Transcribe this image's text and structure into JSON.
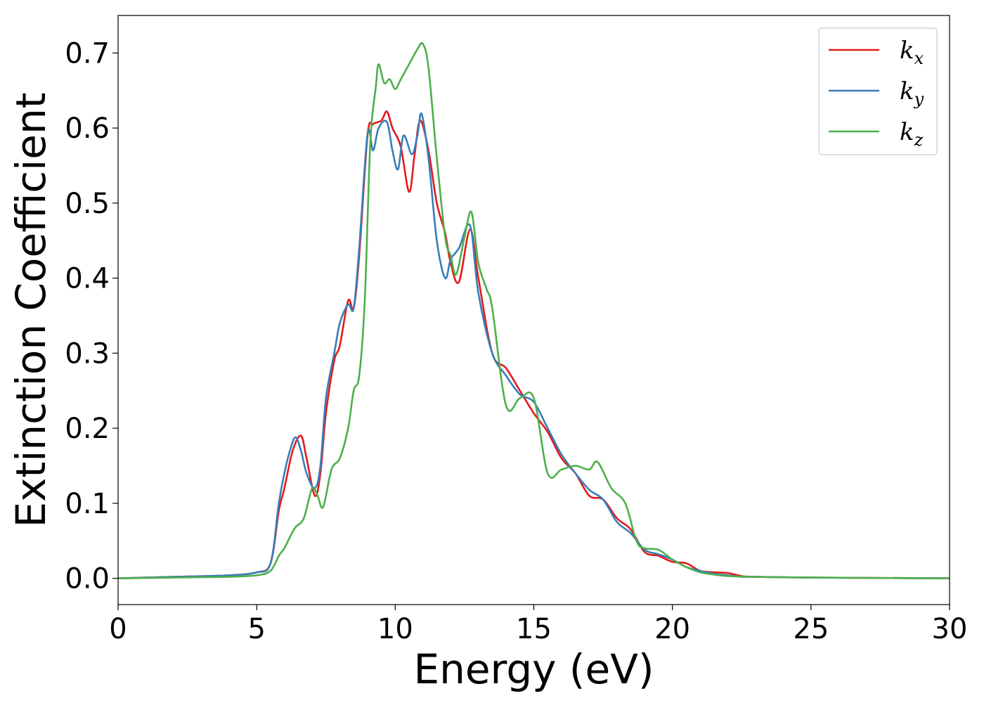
{
  "chart_data": {
    "type": "line",
    "title": "",
    "xlabel": "Energy (eV)",
    "ylabel": "Extinction Coefficient",
    "xlim": [
      0,
      30
    ],
    "ylim": [
      -0.035,
      0.75
    ],
    "xticks": [
      0,
      5,
      10,
      15,
      20,
      25,
      30
    ],
    "yticks": [
      0.0,
      0.1,
      0.2,
      0.3,
      0.4,
      0.5,
      0.6,
      0.7
    ],
    "grid": false,
    "legend_position": "top-right",
    "series": [
      {
        "name": "x",
        "legend_base": "k",
        "legend_sub": "x",
        "color": "#e41a1c",
        "x": [
          0,
          2,
          4,
          5,
          5.5,
          5.8,
          6.0,
          6.3,
          6.6,
          6.8,
          7.1,
          7.3,
          7.5,
          7.8,
          8.0,
          8.3,
          8.5,
          8.7,
          9.0,
          9.2,
          9.5,
          9.7,
          9.9,
          10.2,
          10.5,
          10.7,
          10.9,
          11.2,
          11.5,
          11.8,
          12.0,
          12.3,
          12.7,
          13.0,
          13.5,
          14.0,
          14.5,
          15.0,
          15.5,
          16.0,
          16.5,
          17.0,
          17.5,
          18.0,
          18.5,
          19.0,
          19.5,
          20.0,
          20.5,
          21.0,
          21.5,
          22.0,
          22.5,
          23.0,
          25.0,
          30.0
        ],
        "y": [
          0.0,
          0.002,
          0.004,
          0.008,
          0.02,
          0.09,
          0.12,
          0.17,
          0.19,
          0.16,
          0.11,
          0.14,
          0.22,
          0.29,
          0.31,
          0.37,
          0.36,
          0.43,
          0.59,
          0.605,
          0.61,
          0.622,
          0.6,
          0.575,
          0.515,
          0.565,
          0.61,
          0.57,
          0.5,
          0.46,
          0.42,
          0.395,
          0.465,
          0.4,
          0.3,
          0.28,
          0.25,
          0.22,
          0.195,
          0.16,
          0.14,
          0.11,
          0.105,
          0.08,
          0.065,
          0.035,
          0.03,
          0.022,
          0.02,
          0.01,
          0.008,
          0.007,
          0.003,
          0.002,
          0.001,
          0.0
        ]
      },
      {
        "name": "y",
        "legend_base": "k",
        "legend_sub": "y",
        "color": "#377eb8",
        "x": [
          0,
          2,
          4,
          5,
          5.5,
          5.8,
          6.0,
          6.2,
          6.4,
          6.6,
          6.8,
          7.1,
          7.3,
          7.5,
          7.8,
          8.0,
          8.3,
          8.5,
          8.7,
          9.0,
          9.2,
          9.4,
          9.7,
          9.9,
          10.1,
          10.3,
          10.6,
          10.8,
          10.95,
          11.2,
          11.5,
          11.8,
          12.0,
          12.3,
          12.7,
          13.0,
          13.5,
          14.0,
          14.5,
          15.0,
          15.5,
          16.0,
          16.5,
          17.0,
          17.5,
          18.0,
          18.5,
          19.0,
          19.5,
          20.0,
          20.5,
          21.0,
          21.5,
          22.0,
          22.5,
          23.0,
          25.0,
          30.0
        ],
        "y": [
          0.0,
          0.002,
          0.004,
          0.008,
          0.02,
          0.1,
          0.14,
          0.17,
          0.188,
          0.17,
          0.14,
          0.12,
          0.15,
          0.24,
          0.3,
          0.34,
          0.365,
          0.36,
          0.44,
          0.592,
          0.57,
          0.6,
          0.608,
          0.57,
          0.545,
          0.59,
          0.565,
          0.59,
          0.619,
          0.56,
          0.45,
          0.4,
          0.425,
          0.44,
          0.47,
          0.38,
          0.3,
          0.27,
          0.245,
          0.235,
          0.2,
          0.165,
          0.14,
          0.118,
          0.105,
          0.075,
          0.06,
          0.038,
          0.032,
          0.025,
          0.015,
          0.01,
          0.006,
          0.004,
          0.002,
          0.002,
          0.001,
          0.0
        ]
      },
      {
        "name": "z",
        "legend_base": "k",
        "legend_sub": "z",
        "color": "#4daf4a",
        "x": [
          0,
          2,
          4,
          5,
          5.5,
          5.8,
          6.0,
          6.2,
          6.4,
          6.7,
          7.0,
          7.2,
          7.4,
          7.7,
          8.0,
          8.3,
          8.5,
          8.7,
          8.9,
          9.1,
          9.3,
          9.4,
          9.6,
          9.8,
          10.0,
          10.2,
          10.5,
          10.8,
          11.0,
          11.2,
          11.5,
          11.8,
          12.0,
          12.2,
          12.5,
          12.75,
          13.0,
          13.3,
          13.5,
          14.0,
          14.5,
          15.0,
          15.5,
          16.0,
          16.5,
          17.0,
          17.3,
          17.8,
          18.3,
          18.7,
          19.0,
          19.5,
          20.0,
          20.5,
          21.0,
          21.5,
          22.0,
          23.0,
          25.0,
          30.0
        ],
        "y": [
          0.0,
          0.001,
          0.002,
          0.004,
          0.01,
          0.03,
          0.04,
          0.055,
          0.068,
          0.08,
          0.12,
          0.11,
          0.095,
          0.145,
          0.16,
          0.2,
          0.25,
          0.27,
          0.37,
          0.58,
          0.655,
          0.685,
          0.66,
          0.665,
          0.652,
          0.665,
          0.685,
          0.705,
          0.712,
          0.68,
          0.56,
          0.455,
          0.43,
          0.405,
          0.455,
          0.488,
          0.42,
          0.385,
          0.36,
          0.23,
          0.24,
          0.24,
          0.14,
          0.145,
          0.15,
          0.145,
          0.155,
          0.12,
          0.1,
          0.05,
          0.04,
          0.038,
          0.025,
          0.015,
          0.008,
          0.005,
          0.003,
          0.002,
          0.001,
          0.0
        ]
      }
    ]
  }
}
